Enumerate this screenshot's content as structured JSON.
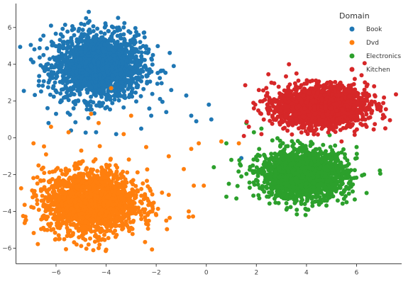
{
  "chart_data": {
    "type": "scatter",
    "title": "",
    "xlabel": "",
    "ylabel": "",
    "xlim": [
      -7.6,
      7.8
    ],
    "ylim": [
      -6.85,
      7.3
    ],
    "xticks": [
      -6,
      -4,
      -2,
      0,
      2,
      4,
      6
    ],
    "yticks": [
      -6,
      -4,
      -2,
      0,
      2,
      4,
      6
    ],
    "grid": false,
    "legend": {
      "title": "Domain",
      "placement": "top-right"
    },
    "series": [
      {
        "name": "Book",
        "color": "#1f77b4",
        "n_points": 1800,
        "center": [
          -4.3,
          3.9
        ],
        "spread": [
          0.9,
          0.9
        ],
        "outliers": [
          [
            -4.8,
            6.5
          ],
          [
            -5.0,
            6.2
          ],
          [
            -6.2,
            6.1
          ],
          [
            -6.5,
            4.5
          ],
          [
            -3.3,
            6.0
          ],
          [
            -3.9,
            5.8
          ],
          [
            -2.7,
            5.6
          ],
          [
            -1.3,
            3.9
          ],
          [
            -0.8,
            2.3
          ],
          [
            -0.6,
            1.2
          ],
          [
            -1.6,
            1.4
          ],
          [
            -2.6,
            0.5
          ],
          [
            -3.6,
            0.2
          ],
          [
            -4.4,
            0.3
          ],
          [
            -5.4,
            0.4
          ],
          [
            -6.3,
            0.8
          ],
          [
            -6.0,
            1.3
          ],
          [
            0.1,
            1.8
          ],
          [
            0.2,
            1.0
          ],
          [
            -0.4,
            0.9
          ],
          [
            1.4,
            -1.1
          ],
          [
            -1.4,
            2.6
          ],
          [
            -5.3,
            1.6
          ],
          [
            -2.2,
            1.2
          ]
        ]
      },
      {
        "name": "Dvd",
        "color": "#ff7f0e",
        "n_points": 1800,
        "center": [
          -4.6,
          -3.5
        ],
        "spread": [
          0.95,
          0.85
        ],
        "outliers": [
          [
            -4.3,
            -6.0
          ],
          [
            -4.7,
            -5.8
          ],
          [
            -6.9,
            -3.8
          ],
          [
            -6.6,
            -2.8
          ],
          [
            -6.7,
            -1.5
          ],
          [
            -6.9,
            -0.3
          ],
          [
            -6.4,
            -0.9
          ],
          [
            -6.2,
            0.6
          ],
          [
            -5.5,
            0.3
          ],
          [
            -4.6,
            1.3
          ],
          [
            -4.3,
            0.8
          ],
          [
            -3.3,
            0.2
          ],
          [
            -2.4,
            -0.5
          ],
          [
            -1.5,
            -1.0
          ],
          [
            -0.9,
            -1.7
          ],
          [
            -0.6,
            -0.6
          ],
          [
            -0.5,
            -2.6
          ],
          [
            -0.1,
            -2.6
          ],
          [
            -0.7,
            -4.0
          ],
          [
            -2.2,
            -3.6
          ],
          [
            -1.6,
            -4.5
          ],
          [
            -2.6,
            -4.2
          ],
          [
            -1.5,
            -3.1
          ],
          [
            -0.7,
            -4.3
          ],
          [
            0.6,
            -0.2
          ],
          [
            1.3,
            -0.3
          ],
          [
            -0.3,
            -0.3
          ],
          [
            -3.8,
            2.7
          ],
          [
            -3.0,
            1.2
          ]
        ]
      },
      {
        "name": "Electronics",
        "color": "#2ca02c",
        "n_points": 1800,
        "center": [
          3.9,
          -2.0
        ],
        "spread": [
          0.85,
          0.65
        ],
        "outliers": [
          [
            0.8,
            -0.3
          ],
          [
            1.0,
            -1.2
          ],
          [
            0.9,
            -2.5
          ],
          [
            0.8,
            -3.2
          ],
          [
            1.2,
            -3.3
          ],
          [
            1.4,
            -2.1
          ],
          [
            0.3,
            -1.6
          ],
          [
            1.6,
            0.8
          ],
          [
            1.9,
            0.3
          ],
          [
            2.2,
            0.5
          ],
          [
            6.0,
            -0.5
          ],
          [
            6.3,
            -2.0
          ],
          [
            6.4,
            -3.0
          ],
          [
            5.6,
            -3.5
          ],
          [
            3.2,
            -3.9
          ],
          [
            4.0,
            -3.9
          ]
        ]
      },
      {
        "name": "Kitchen",
        "color": "#d62728",
        "n_points": 1800,
        "center": [
          4.6,
          1.7
        ],
        "spread": [
          0.9,
          0.55
        ],
        "outliers": [
          [
            3.3,
            4.0
          ],
          [
            3.6,
            3.5
          ],
          [
            6.2,
            3.4
          ],
          [
            6.7,
            2.8
          ],
          [
            6.8,
            1.8
          ],
          [
            6.4,
            0.6
          ],
          [
            2.1,
            2.6
          ],
          [
            1.9,
            1.6
          ],
          [
            1.7,
            0.6
          ],
          [
            2.2,
            0.2
          ],
          [
            5.4,
            -0.2
          ],
          [
            6.0,
            1.2
          ],
          [
            1.5,
            0.1
          ],
          [
            2.6,
            3.0
          ]
        ]
      }
    ]
  }
}
